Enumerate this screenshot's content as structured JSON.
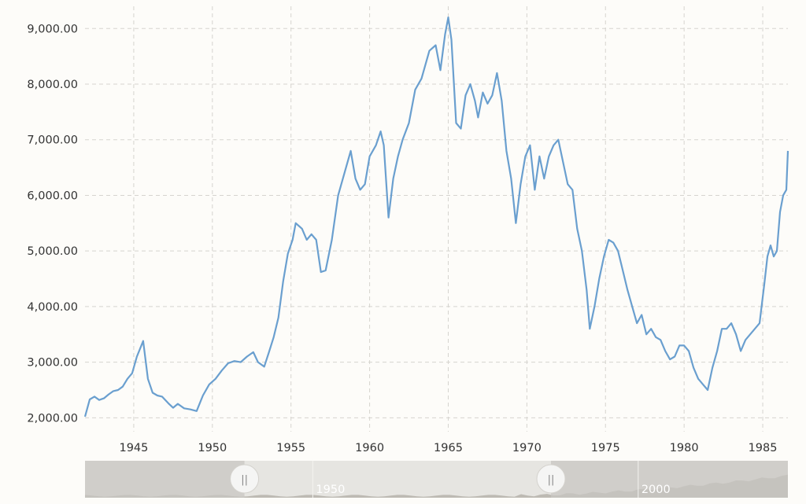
{
  "chart_data": {
    "type": "line",
    "title": "",
    "xlabel": "",
    "ylabel": "",
    "xlim": [
      1941.9,
      1986.6
    ],
    "ylim": [
      1750,
      9400
    ],
    "grid": true,
    "y_ticks": [
      2000,
      3000,
      4000,
      5000,
      6000,
      7000,
      8000,
      9000
    ],
    "y_tick_labels": [
      "2,000.00",
      "3,000.00",
      "4,000.00",
      "5,000.00",
      "6,000.00",
      "7,000.00",
      "8,000.00",
      "9,000.00"
    ],
    "x_ticks": [
      1945,
      1950,
      1955,
      1960,
      1965,
      1970,
      1975,
      1980,
      1985
    ],
    "x_tick_labels": [
      "1945",
      "1950",
      "1955",
      "1960",
      "1965",
      "1970",
      "1975",
      "1980",
      "1985"
    ],
    "series": [
      {
        "color": "#6a9fcf",
        "x": [
          1941.9,
          1942.2,
          1942.5,
          1942.8,
          1943.1,
          1943.4,
          1943.7,
          1944.0,
          1944.3,
          1944.6,
          1944.9,
          1945.2,
          1945.6,
          1945.9,
          1946.2,
          1946.5,
          1946.8,
          1947.2,
          1947.5,
          1947.8,
          1948.2,
          1948.6,
          1949.0,
          1949.4,
          1949.8,
          1950.2,
          1950.6,
          1951.0,
          1951.4,
          1951.8,
          1952.2,
          1952.6,
          1952.9,
          1953.3,
          1953.6,
          1953.9,
          1954.2,
          1954.5,
          1954.8,
          1955.1,
          1955.3,
          1955.7,
          1956.0,
          1956.3,
          1956.6,
          1956.9,
          1957.2,
          1957.6,
          1958.0,
          1958.5,
          1958.8,
          1959.1,
          1959.4,
          1959.7,
          1960.0,
          1960.4,
          1960.7,
          1960.9,
          1961.2,
          1961.5,
          1961.8,
          1962.1,
          1962.5,
          1962.9,
          1963.3,
          1963.8,
          1964.2,
          1964.5,
          1964.8,
          1965.0,
          1965.2,
          1965.5,
          1965.8,
          1966.1,
          1966.4,
          1966.7,
          1966.9,
          1967.2,
          1967.5,
          1967.8,
          1968.1,
          1968.4,
          1968.7,
          1969.0,
          1969.3,
          1969.6,
          1969.9,
          1970.2,
          1970.5,
          1970.8,
          1971.1,
          1971.4,
          1971.7,
          1972.0,
          1972.3,
          1972.6,
          1972.9,
          1973.2,
          1973.5,
          1973.8,
          1974.0,
          1974.3,
          1974.6,
          1974.9,
          1975.2,
          1975.5,
          1975.8,
          1976.1,
          1976.4,
          1976.7,
          1977.0,
          1977.3,
          1977.6,
          1977.9,
          1978.2,
          1978.5,
          1978.8,
          1979.1,
          1979.4,
          1979.7,
          1980.0,
          1980.3,
          1980.6,
          1980.9,
          1981.2,
          1981.5,
          1981.8,
          1982.1,
          1982.4,
          1982.7,
          1983.0,
          1983.3,
          1983.6,
          1983.9,
          1984.2,
          1984.5,
          1984.8,
          1985.1,
          1985.3,
          1985.5,
          1985.7,
          1985.9,
          1986.1,
          1986.3,
          1986.5,
          1986.6
        ],
        "values": [
          2020,
          2330,
          2380,
          2320,
          2350,
          2420,
          2480,
          2500,
          2560,
          2700,
          2800,
          3100,
          3380,
          2700,
          2450,
          2400,
          2380,
          2260,
          2180,
          2250,
          2170,
          2150,
          2120,
          2400,
          2600,
          2700,
          2850,
          2980,
          3020,
          3000,
          3100,
          3180,
          3000,
          2920,
          3180,
          3450,
          3800,
          4450,
          4950,
          5200,
          5500,
          5400,
          5200,
          5300,
          5200,
          4620,
          4650,
          5200,
          6000,
          6500,
          6800,
          6300,
          6100,
          6200,
          6700,
          6900,
          7150,
          6900,
          5600,
          6300,
          6700,
          7000,
          7300,
          7900,
          8100,
          8600,
          8700,
          8250,
          8900,
          9200,
          8800,
          7300,
          7200,
          7800,
          8000,
          7700,
          7400,
          7850,
          7650,
          7800,
          8200,
          7700,
          6800,
          6300,
          5500,
          6200,
          6700,
          6900,
          6100,
          6700,
          6300,
          6700,
          6900,
          7000,
          6600,
          6200,
          6100,
          5400,
          5000,
          4300,
          3600,
          4000,
          4500,
          4900,
          5200,
          5150,
          5000,
          4650,
          4300,
          4000,
          3700,
          3850,
          3500,
          3600,
          3450,
          3400,
          3200,
          3050,
          3100,
          3300,
          3300,
          3200,
          2900,
          2700,
          2600,
          2500,
          2900,
          3200,
          3600,
          3600,
          3700,
          3500,
          3200,
          3400,
          3500,
          3600,
          3700,
          4400,
          4900,
          5100,
          4900,
          5000,
          5700,
          6000,
          6100,
          6800
        ]
      }
    ],
    "navigator": {
      "labels": [
        "1950",
        "2000"
      ],
      "handle_glyph": "||",
      "selection": [
        1939.5,
        1986.6
      ],
      "full_range": [
        1915,
        2023
      ]
    }
  }
}
